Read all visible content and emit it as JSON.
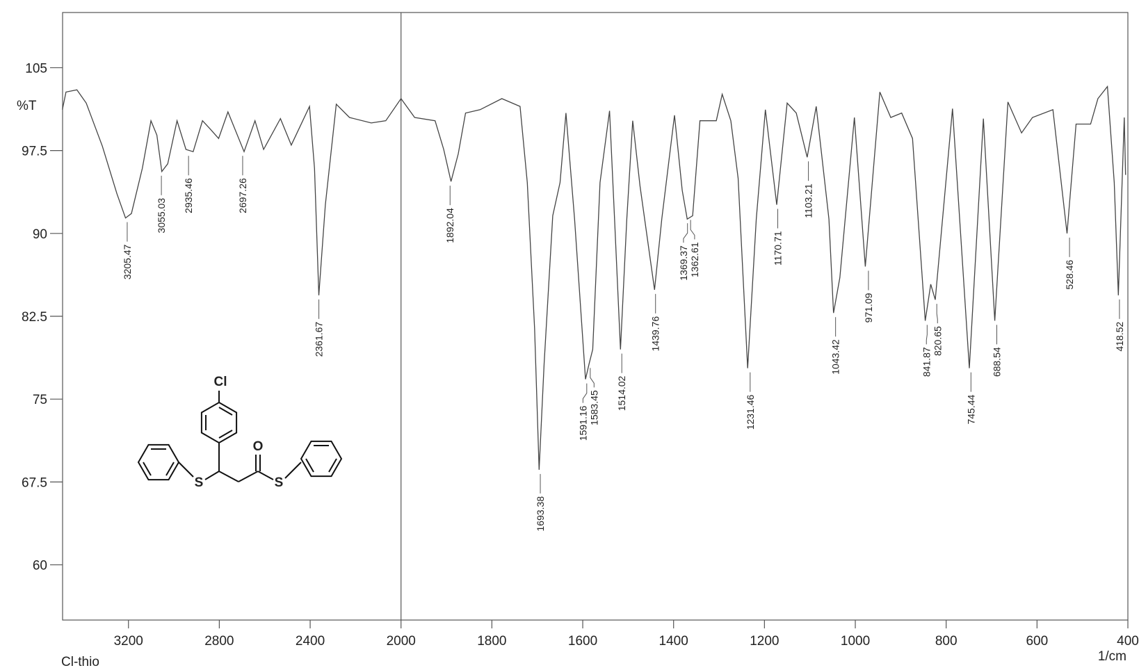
{
  "chart_data": {
    "type": "line",
    "ylabel": "%T",
    "xlabel": "1/cm",
    "caption": "Cl-thio",
    "xlim": [
      3490,
      400
    ],
    "xbreak": 2000,
    "xticks": [
      3200,
      2800,
      2400,
      2000,
      1800,
      1600,
      1400,
      1200,
      1000,
      800,
      600,
      400
    ],
    "ylim": [
      55,
      110
    ],
    "yticks": [
      60,
      67.5,
      75,
      82.5,
      90,
      97.5,
      105
    ],
    "series": [
      {
        "color": "#444444",
        "x": [
          3491,
          3475,
          3427,
          3386,
          3315,
          3251,
          3213,
          3187,
          3139,
          3101,
          3075,
          3053,
          3027,
          2986,
          2947,
          2915,
          2874,
          2842,
          2803,
          2762,
          2691,
          2643,
          2605,
          2531,
          2483,
          2403,
          2381,
          2362,
          2333,
          2285,
          2227,
          2131,
          2067,
          2000,
          1970,
          1925,
          1906,
          1890,
          1874,
          1858,
          1826,
          1778,
          1738,
          1722,
          1706,
          1696,
          1685,
          1666,
          1650,
          1637,
          1618,
          1594,
          1586,
          1578,
          1562,
          1541,
          1530,
          1517,
          1503,
          1490,
          1474,
          1442,
          1426,
          1398,
          1381,
          1370,
          1358,
          1342,
          1306,
          1293,
          1274,
          1258,
          1237,
          1218,
          1198,
          1173,
          1150,
          1130,
          1106,
          1086,
          1058,
          1048,
          1034,
          1002,
          978,
          946,
          922,
          898,
          874,
          846,
          834,
          824,
          786,
          749,
          718,
          693,
          664,
          634,
          610,
          565,
          534,
          514,
          482,
          466,
          445,
          430,
          421,
          408,
          405
        ],
        "values": [
          101.2,
          102.8,
          103.0,
          101.8,
          97.9,
          93.6,
          91.4,
          91.8,
          95.9,
          100.2,
          98.9,
          95.6,
          96.3,
          100.2,
          97.6,
          97.4,
          100.2,
          99.5,
          98.6,
          101.0,
          97.4,
          100.2,
          97.6,
          100.4,
          98.0,
          101.5,
          95.9,
          84.4,
          92.6,
          101.7,
          100.5,
          100.0,
          100.2,
          102.2,
          100.5,
          100.2,
          97.6,
          94.7,
          97.2,
          100.9,
          101.2,
          102.2,
          101.5,
          94.6,
          81.4,
          68.6,
          78.2,
          91.6,
          94.6,
          100.9,
          91.3,
          76.8,
          78.2,
          79.5,
          94.6,
          101.1,
          91.3,
          79.5,
          91.3,
          100.2,
          94.3,
          84.9,
          91.3,
          100.7,
          93.9,
          91.3,
          91.6,
          100.2,
          100.2,
          102.6,
          100.2,
          95.0,
          77.8,
          91.3,
          101.2,
          92.6,
          101.8,
          100.9,
          96.9,
          101.5,
          91.3,
          82.8,
          86.0,
          100.5,
          87.0,
          102.8,
          100.5,
          100.9,
          98.6,
          82.1,
          85.4,
          84.0,
          101.3,
          77.8,
          100.4,
          82.1,
          101.9,
          99.1,
          100.5,
          101.2,
          90.0,
          99.9,
          99.9,
          102.2,
          103.3,
          94.6,
          84.4,
          100.5,
          95.3
        ]
      }
    ],
    "peaks": {
      "x": [
        3205.47,
        3055.03,
        2935.46,
        2697.26,
        2361.67,
        1892.04,
        1693.38,
        1591.16,
        1583.45,
        1514.02,
        1439.76,
        1369.37,
        1362.61,
        1231.46,
        1170.71,
        1103.21,
        1043.42,
        971.09,
        841.87,
        820.65,
        745.44,
        688.54,
        528.46,
        418.52
      ],
      "y": [
        91.4,
        95.6,
        97.4,
        97.4,
        84.4,
        94.7,
        68.6,
        76.8,
        78.2,
        79.5,
        84.9,
        91.3,
        91.6,
        77.8,
        92.6,
        96.9,
        82.8,
        87.0,
        82.1,
        84.0,
        77.8,
        82.1,
        90.0,
        84.4
      ]
    },
    "structure_labels": [
      "Cl",
      "O",
      "S",
      "S"
    ]
  }
}
